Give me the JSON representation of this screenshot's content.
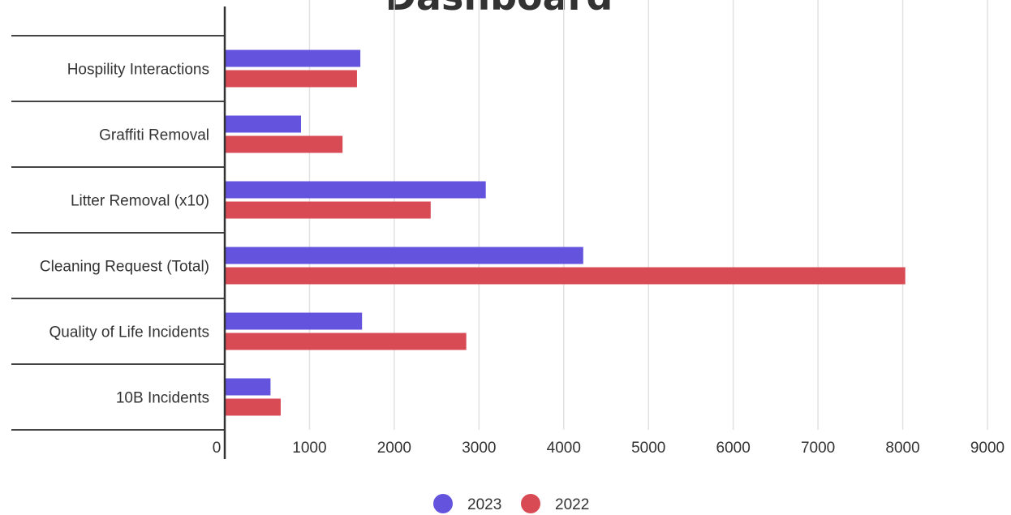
{
  "title": "Dashboard",
  "chart_data": {
    "type": "bar",
    "orientation": "horizontal",
    "title": "Dashboard",
    "categories": [
      "Hospility Interactions",
      "Graffiti Removal",
      "Litter Removal (x10)",
      "Cleaning Request (Total)",
      "Quality of Life Incidents",
      "10B Incidents"
    ],
    "series": [
      {
        "name": "2023",
        "color": "#6453dd",
        "values": [
          1600,
          900,
          3080,
          4230,
          1620,
          540
        ]
      },
      {
        "name": "2022",
        "color": "#d84b55",
        "values": [
          1560,
          1390,
          2430,
          8030,
          2850,
          660
        ]
      }
    ],
    "x_ticks": [
      "0",
      "1000",
      "2000",
      "3000",
      "4000",
      "5000",
      "6000",
      "7000",
      "8000",
      "9000"
    ],
    "xlim": [
      0,
      9000
    ],
    "grid": true,
    "legend_position": "bottom"
  }
}
